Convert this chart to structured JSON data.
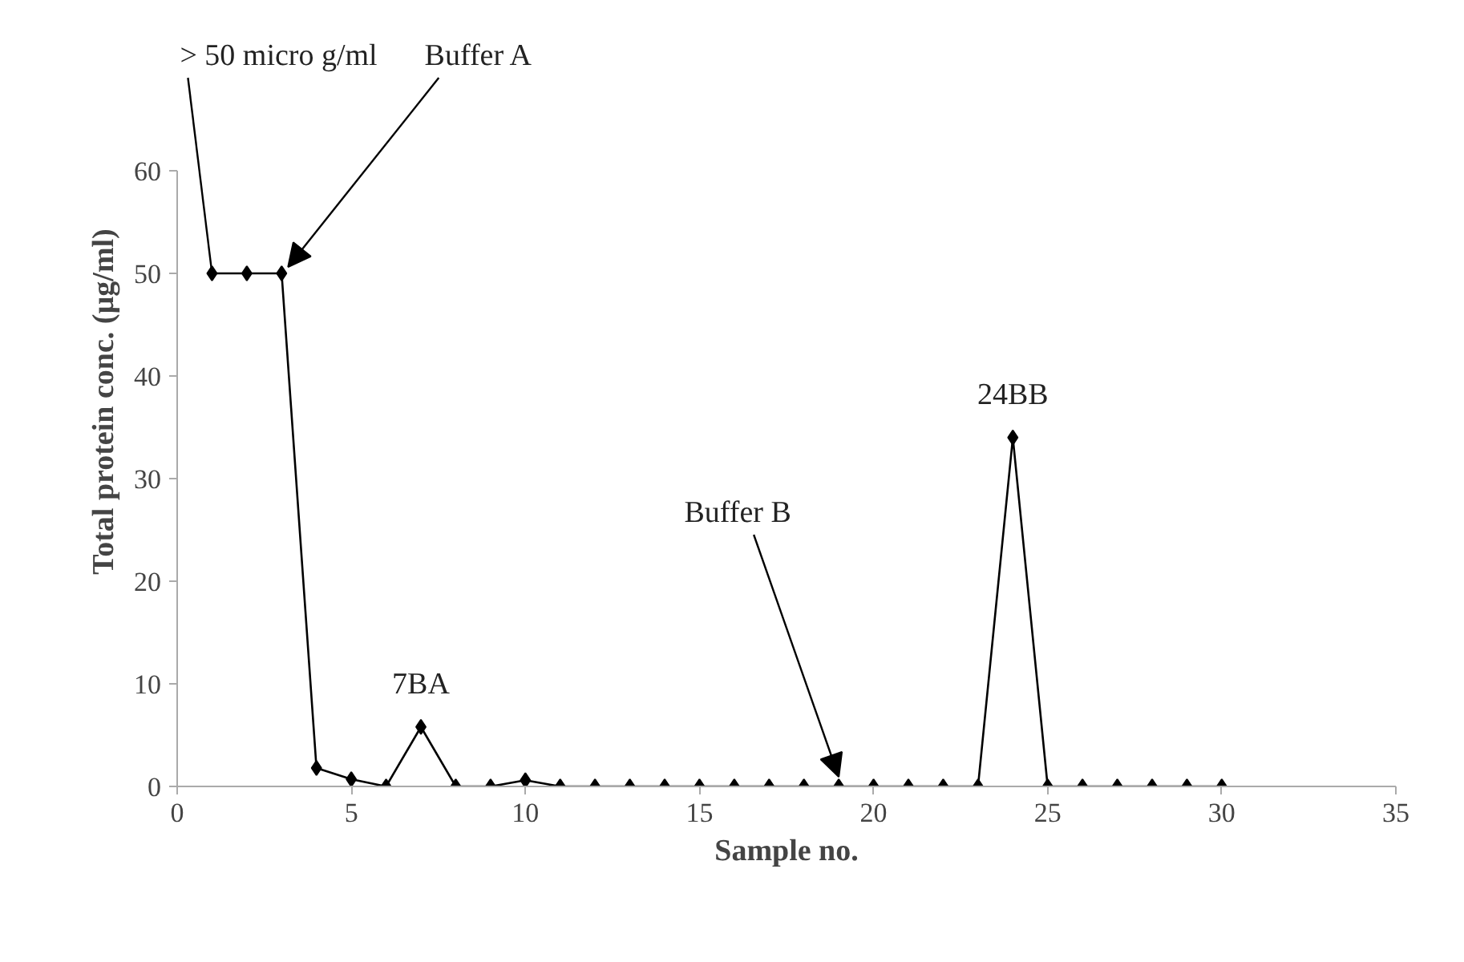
{
  "chart_data": {
    "type": "line",
    "xlabel": "Sample no.",
    "ylabel": "Total protein conc. (µg/ml)",
    "x": [
      1,
      2,
      3,
      4,
      5,
      6,
      7,
      8,
      9,
      10,
      11,
      12,
      13,
      14,
      15,
      16,
      17,
      18,
      19,
      20,
      21,
      22,
      23,
      24,
      25,
      26,
      27,
      28,
      29,
      30
    ],
    "series": [
      {
        "color": "#000000",
        "values": [
          50,
          50,
          50,
          1.8,
          0.7,
          0,
          5.8,
          0,
          0,
          0.6,
          0,
          0,
          0,
          0,
          0,
          0,
          0,
          0,
          0,
          0,
          0,
          0,
          0,
          34,
          0,
          0,
          0,
          0,
          0,
          0
        ]
      }
    ],
    "xlim": [
      0,
      35
    ],
    "xticks": [
      0,
      5,
      10,
      15,
      20,
      25,
      30,
      35
    ],
    "ylim": [
      0,
      60
    ],
    "yticks": [
      0,
      10,
      20,
      30,
      40,
      50,
      60
    ],
    "grid": false,
    "marker": "diamond",
    "line_style": "solid",
    "annotations": [
      {
        "text": "> 50 micro g/ml",
        "x": 1,
        "y": 50
      },
      {
        "text": "Buffer A",
        "x": 3,
        "y": 50
      },
      {
        "text": "7BA",
        "x": 7,
        "y": 5.8
      },
      {
        "text": "24BB",
        "x": 24,
        "y": 34
      },
      {
        "text": "Buffer B",
        "x": 19,
        "y": 0
      }
    ]
  }
}
